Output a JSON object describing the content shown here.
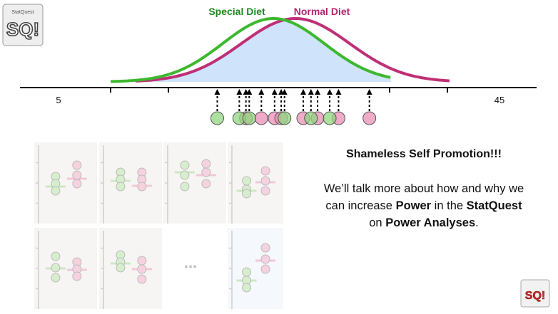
{
  "chart_data": {
    "type": "diagram",
    "x_ticks": [
      "5",
      "45"
    ],
    "curves": [
      {
        "name": "Special Diet",
        "color": "#1a8a1a",
        "stroke": "#3cb82e"
      },
      {
        "name": "Normal Diet",
        "color": "#b0256e",
        "stroke": "#bf2f76"
      }
    ],
    "green_points": [
      19.4,
      21.4,
      22.3,
      25.5,
      27.9,
      29.6
    ],
    "pink_points": [
      22.0,
      23.4,
      24.6,
      25.2,
      27.2,
      28.5,
      30.4,
      33.2
    ]
  },
  "promo": {
    "title": "Shameless Self Promotion!!!",
    "line1": "We’ll talk more about how and why we",
    "line2_pre": "can increase ",
    "line2_bold1": "Power",
    "line2_mid": " in the ",
    "line2_bold2": "StatQuest",
    "line3_pre": "on ",
    "line3_bold": "Power Analyses",
    "line3_post": "."
  },
  "ellipsis": "...",
  "logo": {
    "text": "SQ!",
    "small": "StatQuest"
  }
}
